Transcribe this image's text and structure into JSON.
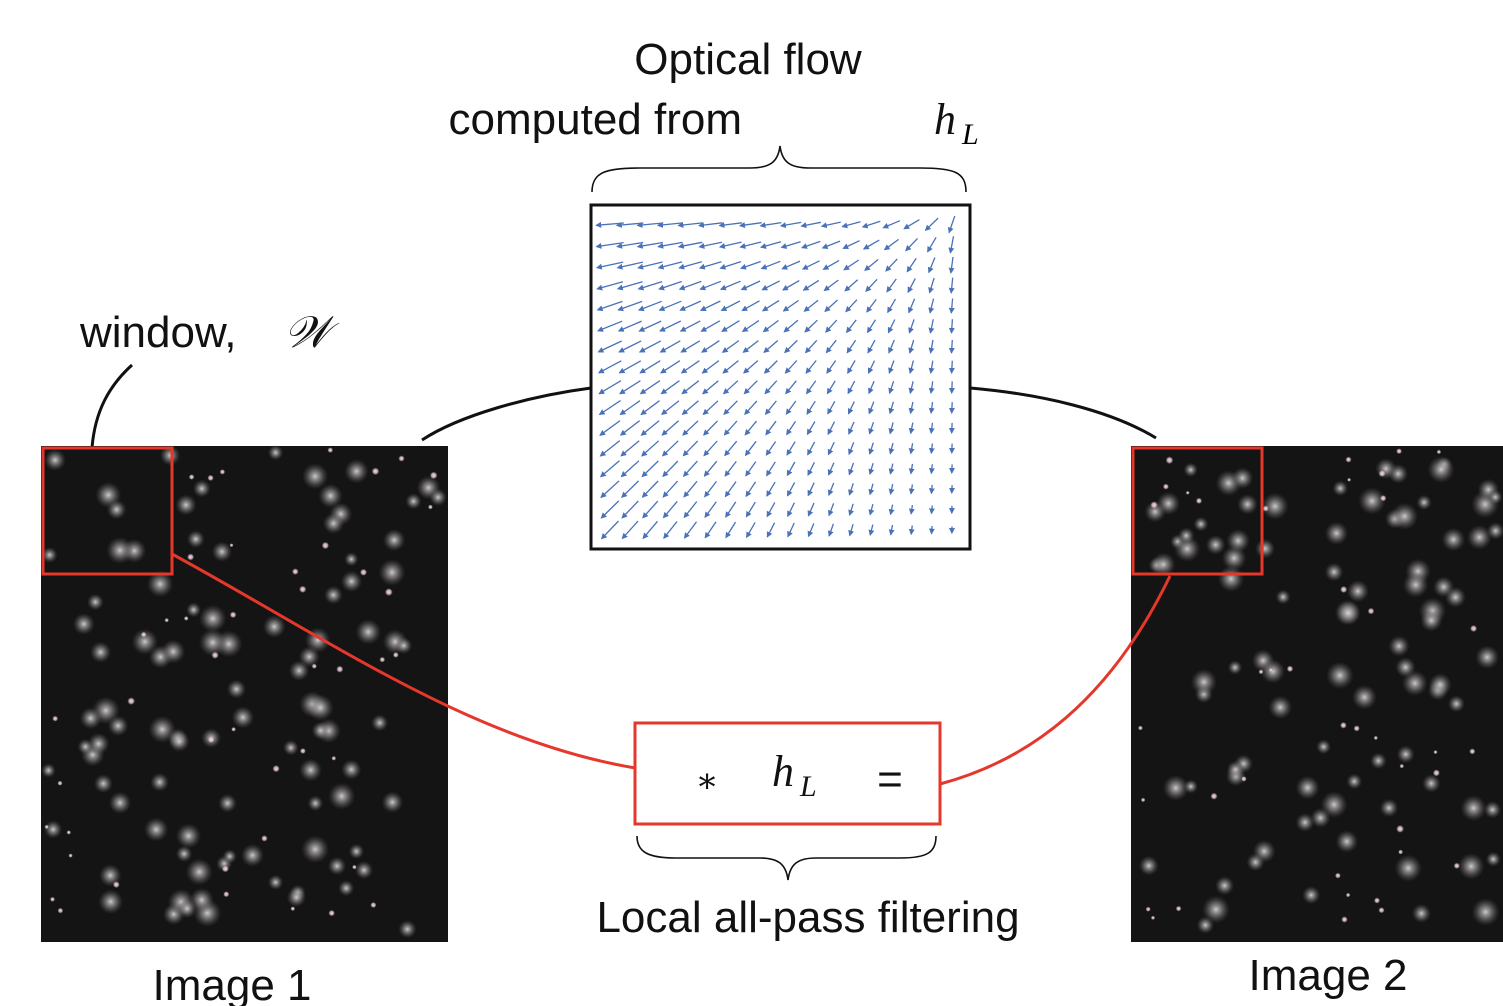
{
  "title": {
    "line1": "Optical flow",
    "line2": "computed from",
    "math_var": "h",
    "math_sub": "L"
  },
  "window_label": {
    "text": "window,",
    "math_symbol": "𝒲"
  },
  "image1": {
    "caption": "Image 1"
  },
  "image2": {
    "caption": "Image 2"
  },
  "filter_box": {
    "op": "∗",
    "math_var": "h",
    "math_sub": "L",
    "equals": "="
  },
  "filter_caption": "Local all-pass filtering",
  "colors": {
    "highlight": "#e5372b",
    "arrows": "#4a72b8",
    "connector": "#111111",
    "image_bg": "#141414"
  },
  "flow_field": {
    "description_free": true,
    "grid_cols": 18,
    "grid_rows": 16
  }
}
